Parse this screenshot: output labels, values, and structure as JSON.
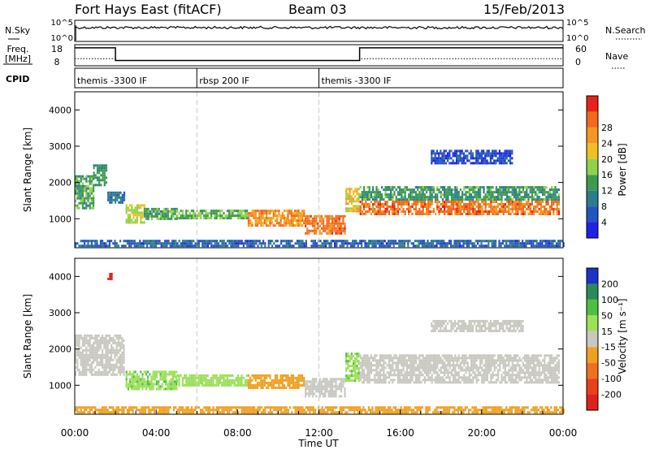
{
  "header": {
    "title": "Fort Hays East (fitACF)",
    "beam": "Beam 03",
    "date": "15/Feb/2013"
  },
  "params": {
    "nsky_label": "N.Sky",
    "nsky_ticks": [
      "10^5",
      "10^0"
    ],
    "nsearch_label": "N.Search",
    "nsearch_ticks": [
      "10^5",
      "10^0"
    ],
    "freq_label": [
      "Freq.",
      "[MHz]"
    ],
    "freq_ticks": [
      "18",
      "8"
    ],
    "nave_label": "Nave",
    "nave_ticks": [
      "60",
      "0"
    ],
    "cpid_label": "CPID",
    "cpid_segments": [
      {
        "label": "themis -3300 IF",
        "start": 0.0,
        "end": 6.0
      },
      {
        "label": "rbsp 200 IF",
        "start": 6.0,
        "end": 12.0
      },
      {
        "label": "themis -3300 IF",
        "start": 12.0,
        "end": 24.0
      }
    ],
    "freq_steps": [
      {
        "start": 0.0,
        "end": 2.0,
        "value": 16.5
      },
      {
        "start": 2.0,
        "end": 14.0,
        "value": 10.5
      },
      {
        "start": 14.0,
        "end": 24.0,
        "value": 16.5
      }
    ],
    "nave_steps": [
      {
        "start": 0.0,
        "end": 2.0,
        "value": 20
      },
      {
        "start": 2.0,
        "end": 14.0,
        "value": 15
      },
      {
        "start": 14.0,
        "end": 24.0,
        "value": 20
      }
    ]
  },
  "chart_data": [
    {
      "type": "heatmap",
      "name": "power",
      "ylabel": "Slant Range [km]",
      "ylim": [
        200,
        4500
      ],
      "yticks": [
        "1000",
        "2000",
        "3000",
        "4000"
      ],
      "xlim": [
        0,
        24
      ],
      "colorbar": {
        "label": "Power [dB]",
        "ticks": [
          "4",
          "8",
          "12",
          "16",
          "20",
          "24",
          "28"
        ],
        "colors": [
          "#1e22e6",
          "#2255c0",
          "#2a7d8a",
          "#3c9a50",
          "#8fd14a",
          "#f0c020",
          "#f59620",
          "#f06a1c",
          "#e8221a"
        ]
      },
      "features": [
        {
          "t0": 0.0,
          "t1": 0.9,
          "r0": 1300,
          "r1": 2200,
          "value": 14
        },
        {
          "t0": 0.9,
          "t1": 1.6,
          "r0": 1900,
          "r1": 2500,
          "value": 12
        },
        {
          "t0": 1.6,
          "t1": 2.4,
          "r0": 1450,
          "r1": 1750,
          "value": 10
        },
        {
          "t0": 2.5,
          "t1": 3.4,
          "r0": 900,
          "r1": 1400,
          "value": 18
        },
        {
          "t0": 3.4,
          "t1": 5.0,
          "r0": 980,
          "r1": 1300,
          "value": 14
        },
        {
          "t0": 5.0,
          "t1": 8.5,
          "r0": 1020,
          "r1": 1250,
          "value": 15
        },
        {
          "t0": 8.5,
          "t1": 11.3,
          "r0": 800,
          "r1": 1250,
          "value": 24
        },
        {
          "t0": 11.3,
          "t1": 13.3,
          "r0": 600,
          "r1": 1100,
          "value": 26
        },
        {
          "t0": 13.3,
          "t1": 14.0,
          "r0": 1200,
          "r1": 1850,
          "value": 20
        },
        {
          "t0": 14.0,
          "t1": 23.8,
          "r0": 1150,
          "r1": 1500,
          "value": 26
        },
        {
          "t0": 14.0,
          "t1": 23.8,
          "r0": 1500,
          "r1": 1900,
          "value": 13
        },
        {
          "t0": 17.5,
          "t1": 21.5,
          "r0": 2500,
          "r1": 2900,
          "value": 6
        },
        {
          "t0": 0.0,
          "t1": 24.0,
          "r0": 250,
          "r1": 420,
          "value": 8
        }
      ]
    },
    {
      "type": "heatmap",
      "name": "velocity",
      "xlabel": "Time UT",
      "ylabel": "Slant Range [km]",
      "ylim": [
        200,
        4500
      ],
      "yticks": [
        "1000",
        "2000",
        "3000",
        "4000"
      ],
      "xlim": [
        0,
        24
      ],
      "xticks": [
        "00:00",
        "04:00",
        "08:00",
        "12:00",
        "16:00",
        "20:00",
        "00:00"
      ],
      "colorbar": {
        "label": "Velocity [m s⁻¹]",
        "ticks": [
          "200",
          "100",
          "50",
          "15",
          "-15",
          "-50",
          "-100",
          "-200"
        ],
        "colors": [
          "#1e32c8",
          "#2c8a5a",
          "#4ec040",
          "#9ce05a",
          "#c8c8c0",
          "#f0a020",
          "#f07020",
          "#e8401a",
          "#e0201a"
        ]
      },
      "features": [
        {
          "t0": 0.0,
          "t1": 2.4,
          "r0": 1300,
          "r1": 2400,
          "value": 0
        },
        {
          "t0": 2.5,
          "t1": 5.0,
          "r0": 900,
          "r1": 1400,
          "value": 30
        },
        {
          "t0": 5.0,
          "t1": 8.5,
          "r0": 1000,
          "r1": 1300,
          "value": 20
        },
        {
          "t0": 8.5,
          "t1": 11.3,
          "r0": 900,
          "r1": 1300,
          "value": -30
        },
        {
          "t0": 11.3,
          "t1": 13.3,
          "r0": 700,
          "r1": 1200,
          "value": 0
        },
        {
          "t0": 13.3,
          "t1": 14.0,
          "r0": 1100,
          "r1": 1900,
          "value": 30
        },
        {
          "t0": 14.0,
          "t1": 23.8,
          "r0": 1100,
          "r1": 1850,
          "value": 0
        },
        {
          "t0": 17.5,
          "t1": 22.0,
          "r0": 2500,
          "r1": 2800,
          "value": 0
        },
        {
          "t0": 0.0,
          "t1": 24.0,
          "r0": 250,
          "r1": 420,
          "value": -30
        },
        {
          "t0": 1.6,
          "t1": 1.8,
          "r0": 3900,
          "r1": 4100,
          "value": -200
        }
      ]
    }
  ]
}
